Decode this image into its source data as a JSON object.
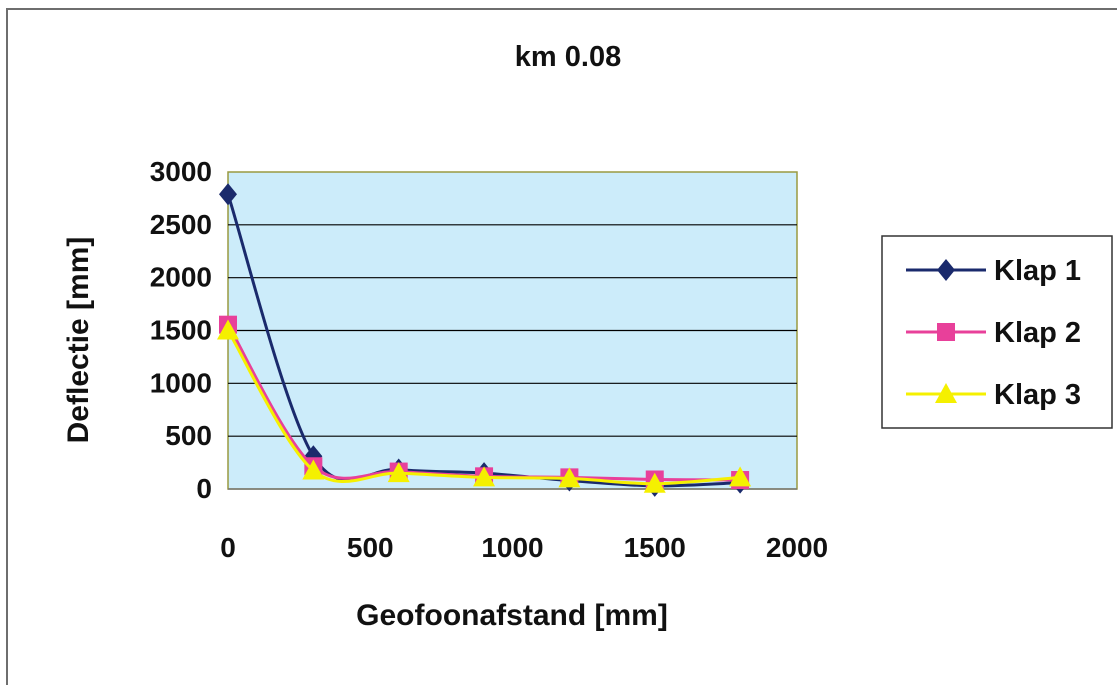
{
  "chart_data": {
    "type": "line",
    "title": "km 0.08",
    "xlabel": "Geofoonafstand [mm]",
    "ylabel": "Deflectie [mm]",
    "xlim": [
      0,
      2000
    ],
    "ylim": [
      0,
      3000
    ],
    "xticks": [
      0,
      500,
      1000,
      1500,
      2000
    ],
    "yticks": [
      0,
      500,
      1000,
      1500,
      2000,
      2500,
      3000
    ],
    "grid": "horizontal",
    "legend_position": "right",
    "plot_background": "#ccecfa",
    "x": [
      0,
      300,
      600,
      900,
      1200,
      1500,
      1800
    ],
    "series": [
      {
        "name": "Klap 1",
        "color": "#1a2a6c",
        "marker": "diamond",
        "values": [
          2790,
          310,
          185,
          150,
          80,
          30,
          60
        ]
      },
      {
        "name": "Klap 2",
        "color": "#e8409a",
        "marker": "square",
        "values": [
          1555,
          215,
          165,
          120,
          110,
          90,
          85
        ]
      },
      {
        "name": "Klap 3",
        "color": "#f5f000",
        "marker": "triangle",
        "values": [
          1500,
          175,
          150,
          110,
          100,
          50,
          110
        ]
      }
    ]
  }
}
